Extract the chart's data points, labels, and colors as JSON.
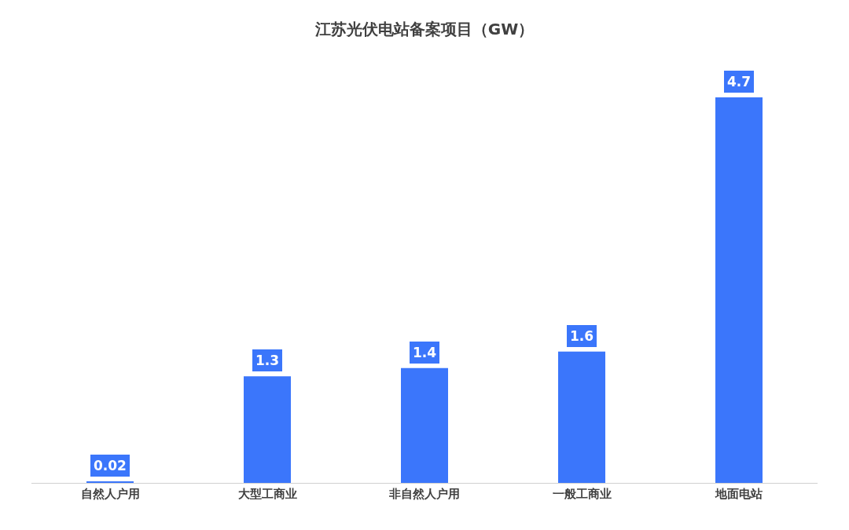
{
  "chart_data": {
    "type": "bar",
    "title": "江苏光伏电站备案项目（GW）",
    "categories": [
      "自然人户用",
      "大型工商业",
      "非自然人户用",
      "一般工商业",
      "地面电站"
    ],
    "values": [
      0.02,
      1.3,
      1.4,
      1.6,
      4.7
    ],
    "color": "#3b76fb",
    "data_labels": true
  }
}
